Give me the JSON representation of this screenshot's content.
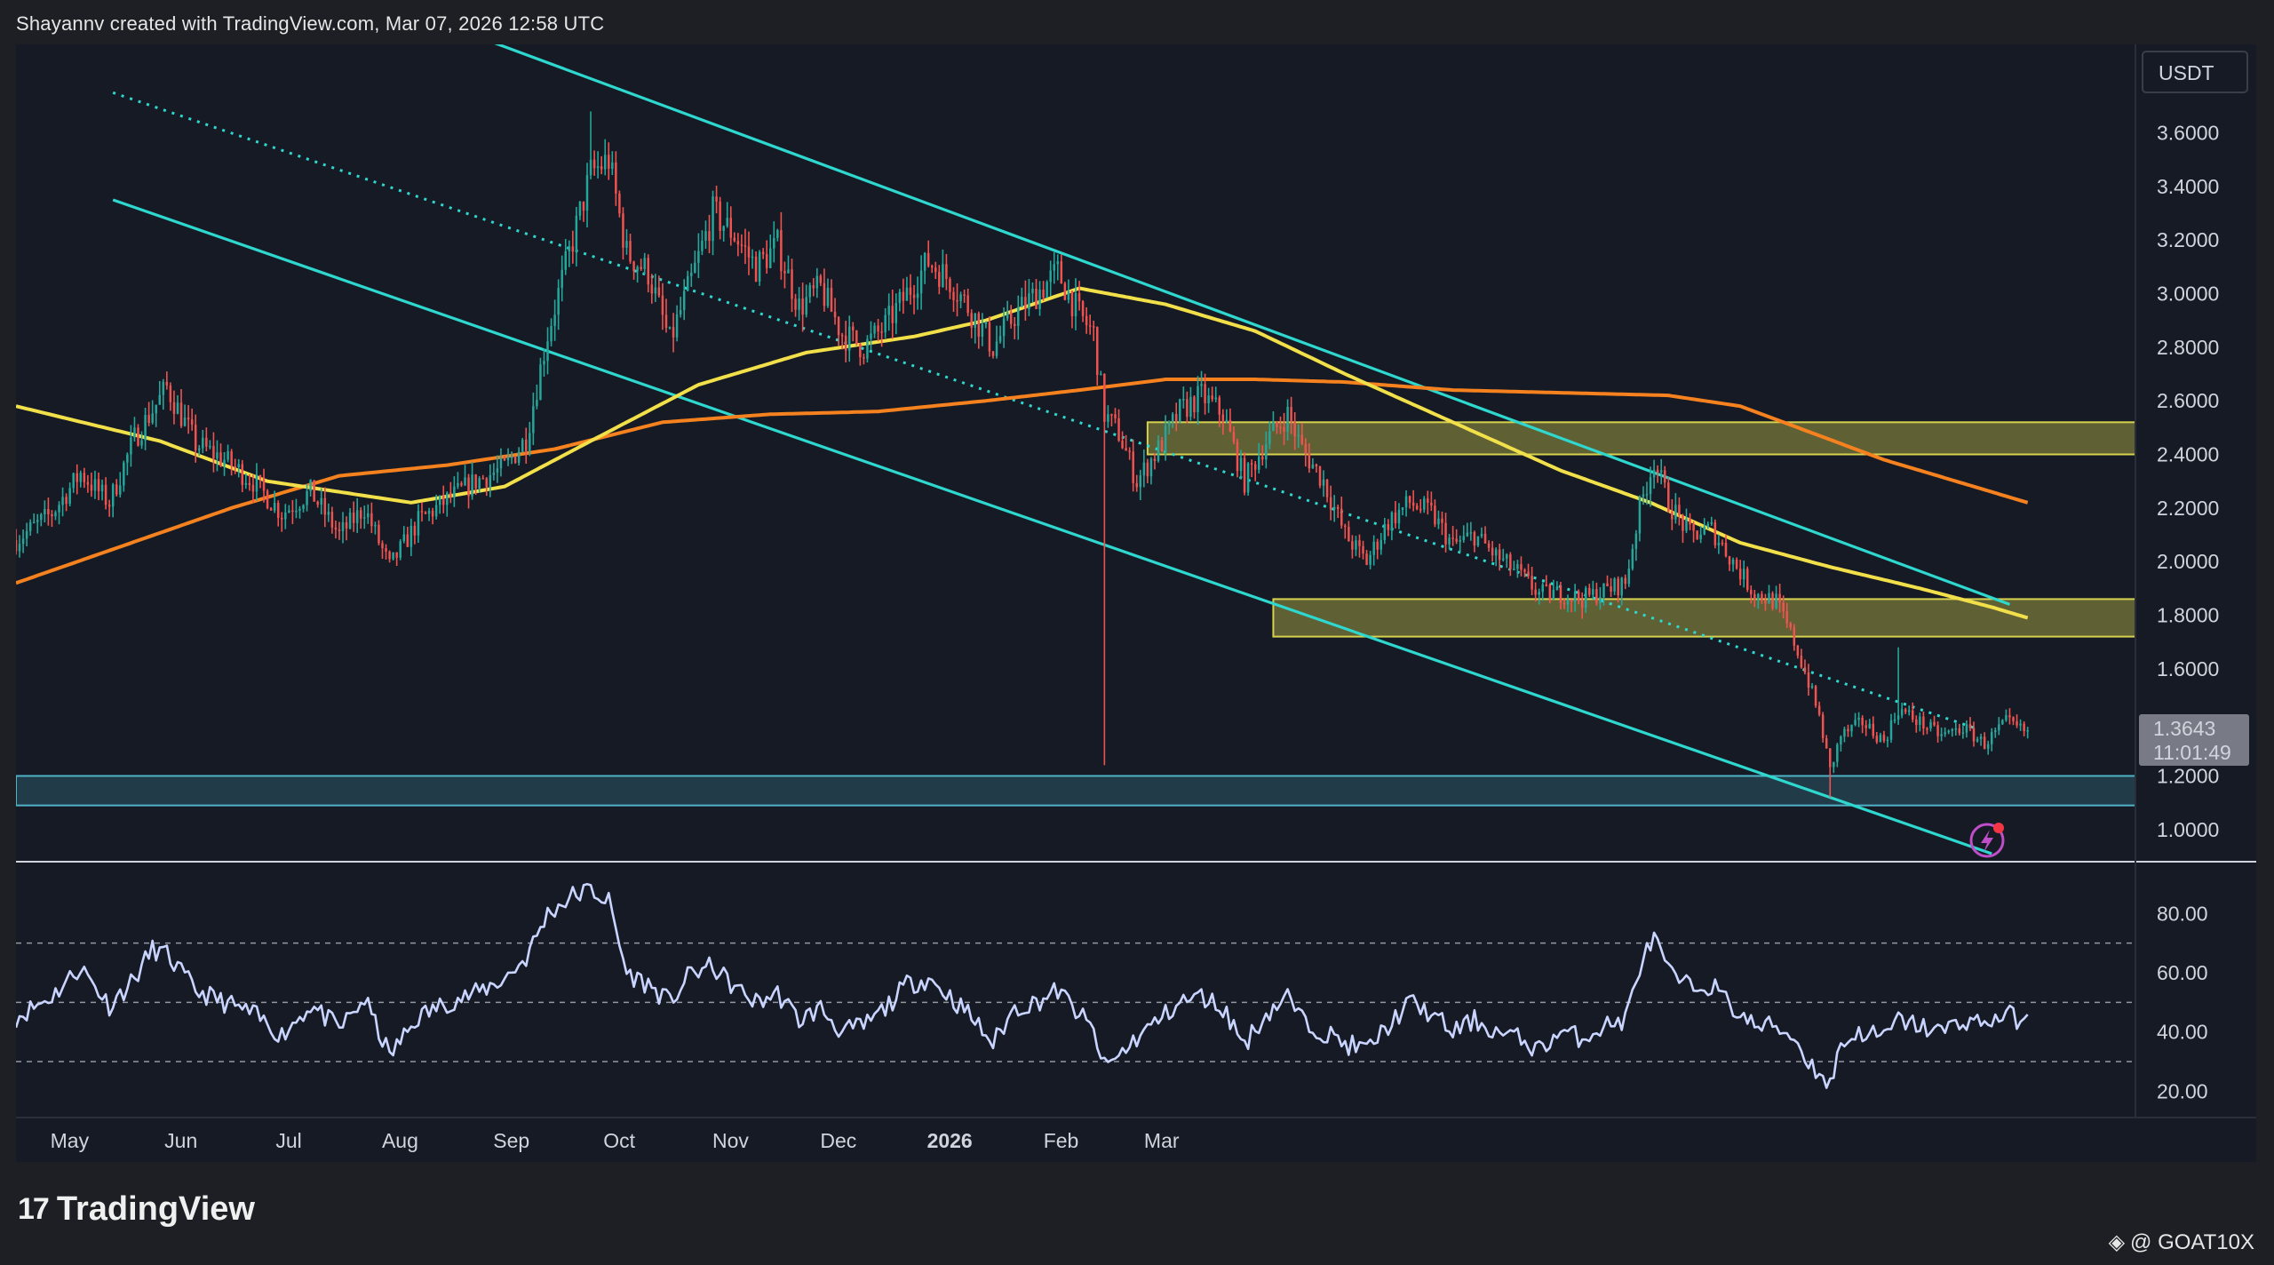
{
  "header": {
    "title": "Shayannv created with TradingView.com, Mar 07, 2026 12:58 UTC"
  },
  "footer": {
    "brand": "TradingView",
    "credit": "@ GOAT10X"
  },
  "colors": {
    "bg": "#151a24",
    "up": "#26a69a",
    "down": "#ef5350",
    "channel": "#2fd8cf",
    "ma100": "#f2e04a",
    "ma200": "#f5821f",
    "zone_yellow": "#d7d24e",
    "zone_blue": "#4fb3c8",
    "rsi": "#c9d4ff"
  },
  "chart_data": [
    {
      "type": "candlestick",
      "currency_label": "USDT",
      "last_price": "1.3643",
      "countdown": "11:01:49",
      "ylim": [
        0.88,
        3.93
      ],
      "y_ticks": [
        "3.6000",
        "3.4000",
        "3.2000",
        "3.0000",
        "2.8000",
        "2.6000",
        "2.4000",
        "2.2000",
        "2.0000",
        "1.8000",
        "1.6000",
        "1.2000",
        "1.0000"
      ],
      "x_ticks": [
        {
          "label": "May",
          "bold": false
        },
        {
          "label": "Jun",
          "bold": false
        },
        {
          "label": "Jul",
          "bold": false
        },
        {
          "label": "Aug",
          "bold": false
        },
        {
          "label": "Sep",
          "bold": false
        },
        {
          "label": "Oct",
          "bold": false
        },
        {
          "label": "Nov",
          "bold": false
        },
        {
          "label": "Dec",
          "bold": false
        },
        {
          "label": "2026",
          "bold": true
        },
        {
          "label": "Feb",
          "bold": false
        },
        {
          "label": "Mar",
          "bold": false
        }
      ],
      "anchors": [
        [
          0,
          2.08
        ],
        [
          10,
          2.18
        ],
        [
          18,
          2.33
        ],
        [
          26,
          2.22
        ],
        [
          33,
          2.46
        ],
        [
          42,
          2.65
        ],
        [
          50,
          2.44
        ],
        [
          58,
          2.38
        ],
        [
          66,
          2.3
        ],
        [
          74,
          2.18
        ],
        [
          82,
          2.26
        ],
        [
          90,
          2.1
        ],
        [
          97,
          2.2
        ],
        [
          104,
          1.98
        ],
        [
          112,
          2.15
        ],
        [
          120,
          2.23
        ],
        [
          128,
          2.3
        ],
        [
          136,
          2.35
        ],
        [
          142,
          2.46
        ],
        [
          148,
          2.85
        ],
        [
          155,
          3.2
        ],
        [
          160,
          3.45
        ],
        [
          165,
          3.5
        ],
        [
          170,
          3.15
        ],
        [
          176,
          3.08
        ],
        [
          182,
          2.82
        ],
        [
          188,
          3.05
        ],
        [
          194,
          3.3
        ],
        [
          200,
          3.22
        ],
        [
          206,
          3.1
        ],
        [
          212,
          3.18
        ],
        [
          218,
          2.95
        ],
        [
          224,
          3.02
        ],
        [
          230,
          2.85
        ],
        [
          236,
          2.8
        ],
        [
          242,
          2.88
        ],
        [
          248,
          3.0
        ],
        [
          254,
          3.12
        ],
        [
          260,
          3.05
        ],
        [
          266,
          2.93
        ],
        [
          272,
          2.8
        ],
        [
          278,
          2.92
        ],
        [
          284,
          3.0
        ],
        [
          290,
          3.08
        ],
        [
          296,
          2.92
        ],
        [
          300,
          2.85
        ],
        [
          303,
          2.55
        ],
        [
          307,
          2.48
        ],
        [
          312,
          2.3
        ],
        [
          318,
          2.42
        ],
        [
          324,
          2.56
        ],
        [
          330,
          2.62
        ],
        [
          336,
          2.55
        ],
        [
          342,
          2.3
        ],
        [
          348,
          2.45
        ],
        [
          354,
          2.55
        ],
        [
          358,
          2.42
        ],
        [
          364,
          2.3
        ],
        [
          370,
          2.1
        ],
        [
          376,
          2.0
        ],
        [
          382,
          2.15
        ],
        [
          388,
          2.22
        ],
        [
          394,
          2.18
        ],
        [
          400,
          2.06
        ],
        [
          406,
          2.1
        ],
        [
          412,
          2.02
        ],
        [
          418,
          1.96
        ],
        [
          424,
          1.88
        ],
        [
          430,
          1.88
        ],
        [
          436,
          1.86
        ],
        [
          442,
          1.89
        ],
        [
          448,
          1.92
        ],
        [
          452,
          2.2
        ],
        [
          456,
          2.38
        ],
        [
          460,
          2.22
        ],
        [
          466,
          2.1
        ],
        [
          472,
          2.12
        ],
        [
          478,
          2.0
        ],
        [
          484,
          1.88
        ],
        [
          490,
          1.85
        ],
        [
          495,
          1.7
        ],
        [
          499,
          1.55
        ],
        [
          502,
          1.42
        ],
        [
          505,
          1.22
        ],
        [
          508,
          1.35
        ],
        [
          514,
          1.4
        ],
        [
          520,
          1.33
        ],
        [
          524,
          1.45
        ],
        [
          530,
          1.4
        ],
        [
          536,
          1.35
        ],
        [
          542,
          1.38
        ],
        [
          548,
          1.32
        ],
        [
          554,
          1.4
        ],
        [
          560,
          1.36
        ]
      ],
      "spikes": [
        {
          "day": 303,
          "low": 1.24
        },
        {
          "day": 505,
          "low": 1.12
        },
        {
          "day": 160,
          "high": 3.68
        },
        {
          "day": 524,
          "high": 1.68
        }
      ],
      "ma100": [
        [
          0,
          2.58
        ],
        [
          40,
          2.45
        ],
        [
          70,
          2.3
        ],
        [
          110,
          2.22
        ],
        [
          136,
          2.28
        ],
        [
          160,
          2.45
        ],
        [
          190,
          2.66
        ],
        [
          220,
          2.78
        ],
        [
          250,
          2.84
        ],
        [
          270,
          2.9
        ],
        [
          296,
          3.02
        ],
        [
          320,
          2.96
        ],
        [
          345,
          2.86
        ],
        [
          370,
          2.7
        ],
        [
          400,
          2.52
        ],
        [
          430,
          2.34
        ],
        [
          455,
          2.22
        ],
        [
          480,
          2.07
        ],
        [
          505,
          1.98
        ],
        [
          530,
          1.9
        ],
        [
          550,
          1.83
        ],
        [
          560,
          1.79
        ]
      ],
      "ma200": [
        [
          0,
          1.92
        ],
        [
          30,
          2.06
        ],
        [
          60,
          2.2
        ],
        [
          90,
          2.32
        ],
        [
          120,
          2.36
        ],
        [
          150,
          2.42
        ],
        [
          180,
          2.52
        ],
        [
          210,
          2.55
        ],
        [
          240,
          2.56
        ],
        [
          270,
          2.6
        ],
        [
          296,
          2.64
        ],
        [
          320,
          2.68
        ],
        [
          345,
          2.68
        ],
        [
          370,
          2.67
        ],
        [
          400,
          2.64
        ],
        [
          430,
          2.63
        ],
        [
          460,
          2.62
        ],
        [
          480,
          2.58
        ],
        [
          500,
          2.48
        ],
        [
          520,
          2.38
        ],
        [
          545,
          2.28
        ],
        [
          560,
          2.22
        ]
      ],
      "channel_upper": [
        [
          90,
          4.15
        ],
        [
          555,
          1.84
        ]
      ],
      "channel_lower": [
        [
          27,
          3.35
        ],
        [
          550,
          0.91
        ]
      ],
      "channel_mid": [
        [
          27,
          3.75
        ],
        [
          545,
          1.38
        ]
      ],
      "zones": [
        {
          "color": "yellow",
          "day_from": 315,
          "top": 2.52,
          "bottom": 2.4
        },
        {
          "color": "yellow",
          "day_from": 350,
          "top": 1.86,
          "bottom": 1.72
        },
        {
          "color": "blue",
          "day_from": 0,
          "top": 1.2,
          "bottom": 1.09
        }
      ]
    },
    {
      "type": "line",
      "ylim": [
        12,
        96
      ],
      "y_ticks": [
        "80.00",
        "60.00",
        "40.00",
        "20.00"
      ],
      "levels": [
        70,
        50,
        30
      ],
      "values": [
        [
          0,
          45
        ],
        [
          10,
          52
        ],
        [
          18,
          62
        ],
        [
          26,
          49
        ],
        [
          33,
          58
        ],
        [
          38,
          68
        ],
        [
          42,
          66
        ],
        [
          50,
          54
        ],
        [
          58,
          50
        ],
        [
          66,
          46
        ],
        [
          74,
          39
        ],
        [
          82,
          49
        ],
        [
          90,
          41
        ],
        [
          97,
          51
        ],
        [
          104,
          32
        ],
        [
          112,
          45
        ],
        [
          120,
          50
        ],
        [
          128,
          53
        ],
        [
          136,
          58
        ],
        [
          142,
          65
        ],
        [
          148,
          80
        ],
        [
          155,
          86
        ],
        [
          160,
          88
        ],
        [
          165,
          84
        ],
        [
          170,
          60
        ],
        [
          176,
          56
        ],
        [
          182,
          50
        ],
        [
          188,
          60
        ],
        [
          194,
          62
        ],
        [
          200,
          55
        ],
        [
          206,
          50
        ],
        [
          212,
          53
        ],
        [
          218,
          44
        ],
        [
          224,
          48
        ],
        [
          230,
          40
        ],
        [
          236,
          42
        ],
        [
          242,
          48
        ],
        [
          248,
          56
        ],
        [
          254,
          58
        ],
        [
          260,
          52
        ],
        [
          266,
          45
        ],
        [
          272,
          36
        ],
        [
          278,
          48
        ],
        [
          284,
          50
        ],
        [
          290,
          54
        ],
        [
          296,
          46
        ],
        [
          300,
          40
        ],
        [
          303,
          28
        ],
        [
          307,
          32
        ],
        [
          312,
          38
        ],
        [
          318,
          44
        ],
        [
          324,
          50
        ],
        [
          330,
          52
        ],
        [
          336,
          48
        ],
        [
          342,
          36
        ],
        [
          348,
          46
        ],
        [
          354,
          52
        ],
        [
          358,
          44
        ],
        [
          364,
          40
        ],
        [
          370,
          36
        ],
        [
          376,
          34
        ],
        [
          382,
          42
        ],
        [
          388,
          50
        ],
        [
          394,
          46
        ],
        [
          400,
          40
        ],
        [
          406,
          44
        ],
        [
          412,
          40
        ],
        [
          418,
          38
        ],
        [
          424,
          34
        ],
        [
          430,
          40
        ],
        [
          436,
          38
        ],
        [
          442,
          42
        ],
        [
          448,
          44
        ],
        [
          452,
          62
        ],
        [
          456,
          72
        ],
        [
          460,
          60
        ],
        [
          466,
          55
        ],
        [
          472,
          56
        ],
        [
          478,
          48
        ],
        [
          484,
          42
        ],
        [
          490,
          42
        ],
        [
          495,
          38
        ],
        [
          499,
          30
        ],
        [
          502,
          26
        ],
        [
          505,
          22
        ],
        [
          508,
          36
        ],
        [
          514,
          40
        ],
        [
          520,
          38
        ],
        [
          524,
          44
        ],
        [
          530,
          42
        ],
        [
          536,
          40
        ],
        [
          542,
          44
        ],
        [
          548,
          43
        ],
        [
          554,
          46
        ],
        [
          560,
          43
        ]
      ]
    }
  ]
}
